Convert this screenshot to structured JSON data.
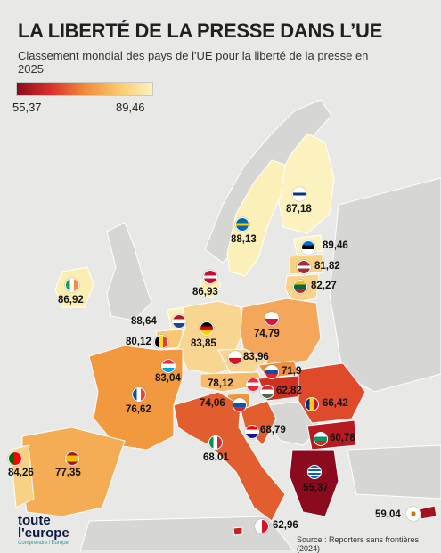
{
  "title": "LA LIBERTÉ DE LA PRESSE DANS L’UE",
  "subtitle": "Classement mondial des pays de l'UE pour la liberté de la presse en 2025",
  "legend": {
    "min": "55,37",
    "max": "89,46"
  },
  "colors": {
    "lowest": "#8b0a1e",
    "low": "#d9312b",
    "mid": "#f08a3a",
    "high": "#f8c96a",
    "highest": "#fbf2c0",
    "non_eu": "#d6d6d4",
    "sea": "#e8e8e6"
  },
  "countries": [
    {
      "id": "finland",
      "name": "Finlande",
      "score": "87,18"
    },
    {
      "id": "sweden",
      "name": "Suède",
      "score": "88,13"
    },
    {
      "id": "estonia",
      "name": "Estonie",
      "score": "89,46"
    },
    {
      "id": "latvia",
      "name": "Lettonie",
      "score": "81,82"
    },
    {
      "id": "lithuania",
      "name": "Lituanie",
      "score": "82,27"
    },
    {
      "id": "denmark",
      "name": "Danemark",
      "score": "86,93"
    },
    {
      "id": "ireland",
      "name": "Irlande",
      "score": "86,92"
    },
    {
      "id": "netherlands",
      "name": "Pays-Bas",
      "score": "88,64"
    },
    {
      "id": "belgium",
      "name": "Belgique",
      "score": "80,12"
    },
    {
      "id": "germany",
      "name": "Allemagne",
      "score": "83,85"
    },
    {
      "id": "poland",
      "name": "Pologne",
      "score": "74,79"
    },
    {
      "id": "luxembourg",
      "name": "Luxembourg",
      "score": "83,04"
    },
    {
      "id": "czechia",
      "name": "Tchéquie",
      "score": "83,96"
    },
    {
      "id": "slovakia",
      "name": "Slovaquie",
      "score": "71,9"
    },
    {
      "id": "austria",
      "name": "Autriche",
      "score": "78,12"
    },
    {
      "id": "hungary",
      "name": "Hongrie",
      "score": "62,82"
    },
    {
      "id": "romania",
      "name": "Roumanie",
      "score": "66,42"
    },
    {
      "id": "slovenia",
      "name": "Slovénie",
      "score": "74,06"
    },
    {
      "id": "croatia",
      "name": "Croatie",
      "score": "68,79"
    },
    {
      "id": "france",
      "name": "France",
      "score": "76,62"
    },
    {
      "id": "bulgaria",
      "name": "Bulgarie",
      "score": "60,78"
    },
    {
      "id": "italy",
      "name": "Italie",
      "score": "68,01"
    },
    {
      "id": "portugal",
      "name": "Portugal",
      "score": "84,26"
    },
    {
      "id": "spain",
      "name": "Espagne",
      "score": "77,35"
    },
    {
      "id": "greece",
      "name": "Grèce",
      "score": "55,37"
    },
    {
      "id": "cyprus",
      "name": "Chypre",
      "score": "59,04"
    },
    {
      "id": "malta",
      "name": "Malte",
      "score": "62,96"
    }
  ],
  "logo": {
    "line1": "toute",
    "line2": "l'europe",
    "tagline": "Comprendre l'Europe"
  },
  "source": "Source : Reporters sans frontières (2024)"
}
